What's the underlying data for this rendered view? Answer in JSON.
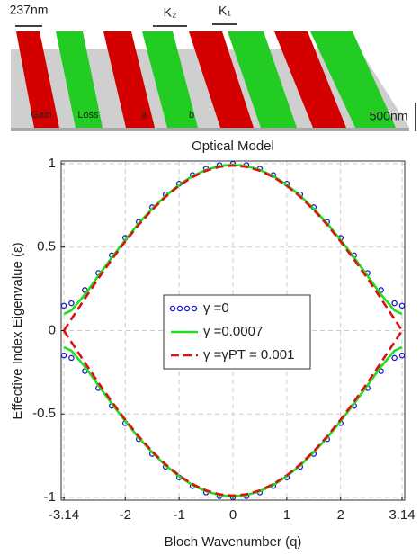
{
  "schematic": {
    "period_label": "237nm",
    "k2_label": "K₂",
    "k1_label": "K₁",
    "gain_label": "Gain",
    "loss_label": "Loss",
    "a_label": "a",
    "b_label": "b",
    "height_label": "500nm"
  },
  "chart_data": {
    "type": "line",
    "title": "Optical Model",
    "x_label": "Bloch Wavenumber (q)",
    "y_label": "Effective Index Eigenvalue (ε)",
    "x": [
      -3.14,
      -3,
      -2.75,
      -2.5,
      -2.25,
      -2,
      -1.75,
      -1.5,
      -1.25,
      -1,
      -0.75,
      -0.5,
      -0.25,
      0,
      0.25,
      0.5,
      0.75,
      1,
      1.25,
      1.5,
      1.75,
      2,
      2.25,
      2.5,
      2.75,
      3,
      3.14
    ],
    "series": [
      {
        "name": "γ =0",
        "color": "#1a1acc",
        "style": "markers",
        "upper": [
          0.149,
          0.164,
          0.243,
          0.345,
          0.451,
          0.555,
          0.651,
          0.739,
          0.816,
          0.88,
          0.932,
          0.97,
          0.992,
          1.0,
          0.992,
          0.97,
          0.932,
          0.88,
          0.816,
          0.739,
          0.651,
          0.555,
          0.451,
          0.345,
          0.243,
          0.164,
          0.149
        ],
        "lower": [
          -0.149,
          -0.164,
          -0.243,
          -0.345,
          -0.451,
          -0.555,
          -0.651,
          -0.739,
          -0.816,
          -0.88,
          -0.932,
          -0.97,
          -0.992,
          -1.0,
          -0.992,
          -0.97,
          -0.932,
          -0.88,
          -0.816,
          -0.739,
          -0.651,
          -0.555,
          -0.451,
          -0.345,
          -0.243,
          -0.164,
          -0.149
        ]
      },
      {
        "name": "γ =0.0007",
        "color": "#22dd22",
        "style": "solid",
        "upper": [
          0.099,
          0.121,
          0.216,
          0.327,
          0.438,
          0.543,
          0.642,
          0.73,
          0.808,
          0.873,
          0.926,
          0.963,
          0.986,
          0.994,
          0.986,
          0.963,
          0.926,
          0.873,
          0.808,
          0.73,
          0.642,
          0.543,
          0.438,
          0.327,
          0.216,
          0.121,
          0.099
        ],
        "lower": [
          -0.099,
          -0.121,
          -0.216,
          -0.327,
          -0.438,
          -0.543,
          -0.642,
          -0.73,
          -0.808,
          -0.873,
          -0.926,
          -0.963,
          -0.986,
          -0.994,
          -0.986,
          -0.963,
          -0.926,
          -0.873,
          -0.808,
          -0.73,
          -0.642,
          -0.543,
          -0.438,
          -0.327,
          -0.216,
          -0.121,
          -0.099
        ]
      },
      {
        "name": "γ =γPT = 0.001",
        "color": "#dd1111",
        "style": "dashed",
        "upper": [
          0,
          0.069,
          0.192,
          0.312,
          0.426,
          0.534,
          0.634,
          0.724,
          0.802,
          0.868,
          0.92,
          0.958,
          0.981,
          0.989,
          0.981,
          0.958,
          0.92,
          0.868,
          0.802,
          0.724,
          0.634,
          0.534,
          0.426,
          0.312,
          0.192,
          0.069,
          0
        ],
        "lower": [
          0,
          -0.069,
          -0.192,
          -0.312,
          -0.426,
          -0.534,
          -0.634,
          -0.724,
          -0.802,
          -0.868,
          -0.92,
          -0.958,
          -0.981,
          -0.989,
          -0.981,
          -0.958,
          -0.92,
          -0.868,
          -0.802,
          -0.724,
          -0.634,
          -0.534,
          -0.426,
          -0.312,
          -0.192,
          -0.069,
          0
        ]
      }
    ],
    "xlim": [
      -3.14,
      3.14
    ],
    "xticks": [
      -3.14,
      -2,
      -1,
      0,
      1,
      2,
      3.14
    ],
    "ylim": [
      -1,
      1
    ],
    "yticks": [
      -1,
      -0.5,
      0,
      0.5,
      1
    ],
    "grid": true,
    "legend": "center"
  }
}
